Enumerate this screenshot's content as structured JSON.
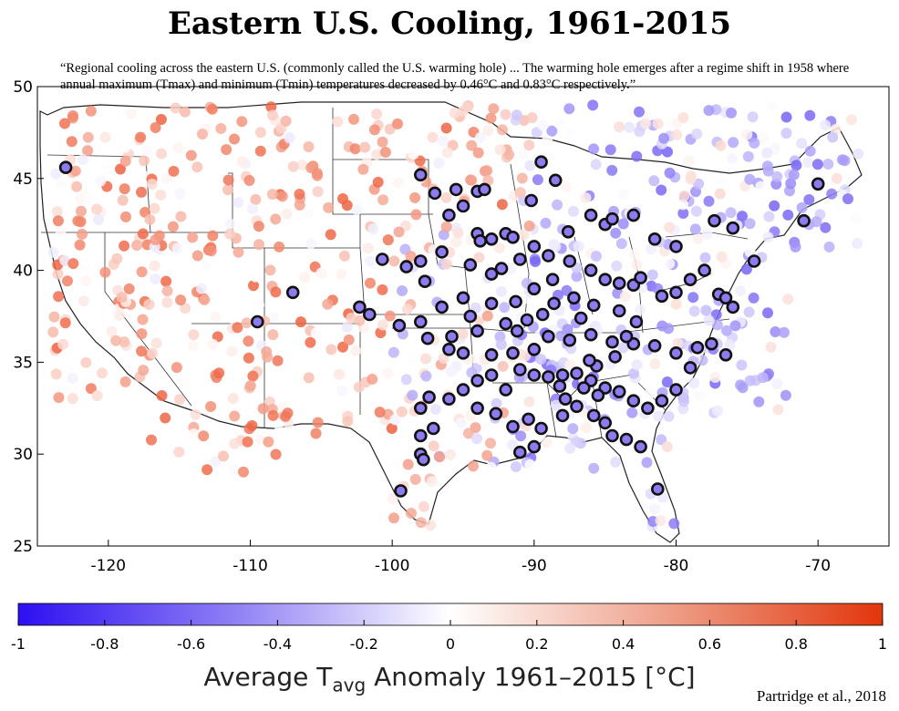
{
  "title": "Eastern U.S. Cooling, 1961-2015",
  "quote": "“Regional cooling across the eastern U.S. (commonly called the U.S. warming hole) ... The warming hole emerges after a regime shift in 1958 where annual maximum (Tmax) and minimum (Tmin) temperatures decreased by 0.46°C and 0.83°C respectively.”",
  "colorbar_label_main": "Average T",
  "colorbar_label_sub": "avg",
  "colorbar_label_rest": " Anomaly 1961–2015 [°C]",
  "credit": "Partridge et al., 2018",
  "colors": {
    "neg": "#3a20f0",
    "zero": "#ffffff",
    "pos": "#e83a10",
    "sig_outline": "#111111"
  },
  "chart_data": {
    "type": "scatter",
    "xlim": [
      -125,
      -65
    ],
    "ylim": [
      25,
      50
    ],
    "x_ticks": [
      "-120",
      "-110",
      "-100",
      "-90",
      "-80",
      "-70"
    ],
    "y_ticks": [
      "25",
      "30",
      "35",
      "40",
      "45",
      "50"
    ],
    "colorbar": {
      "min": -1,
      "max": 1,
      "ticks": [
        "-1",
        "-0.8",
        "-0.6",
        "-0.4",
        "-0.2",
        "0",
        "0.2",
        "0.4",
        "0.6",
        "0.8",
        "1"
      ]
    },
    "significant_stations": [
      [
        -123,
        45.6
      ],
      [
        -107,
        38.8
      ],
      [
        -109.5,
        37.2
      ],
      [
        -98,
        45.2
      ],
      [
        -97,
        44.2
      ],
      [
        -95.5,
        44.4
      ],
      [
        -94,
        44.3
      ],
      [
        -93.5,
        44.4
      ],
      [
        -89.5,
        45.9
      ],
      [
        -88.5,
        44.9
      ],
      [
        -96,
        43
      ],
      [
        -95,
        43.5
      ],
      [
        -94,
        42
      ],
      [
        -93,
        41.7
      ],
      [
        -92,
        42
      ],
      [
        -91.5,
        41.8
      ],
      [
        -93.8,
        41.6
      ],
      [
        -96.5,
        41
      ],
      [
        -98,
        40.5
      ],
      [
        -99,
        40.2
      ],
      [
        -100.7,
        40.6
      ],
      [
        -94.5,
        40.3
      ],
      [
        -93,
        39.8
      ],
      [
        -91,
        40.6
      ],
      [
        -90,
        41.3
      ],
      [
        -89,
        40.8
      ],
      [
        -87.5,
        40.5
      ],
      [
        -86,
        40
      ],
      [
        -85,
        39.5
      ],
      [
        -84,
        39.3
      ],
      [
        -83,
        39.2
      ],
      [
        -82.5,
        39.6
      ],
      [
        -81,
        38.6
      ],
      [
        -80,
        38.8
      ],
      [
        -79,
        39.5
      ],
      [
        -78,
        40
      ],
      [
        -77,
        38.7
      ],
      [
        -76.5,
        38.5
      ],
      [
        -76,
        38
      ],
      [
        -77.3,
        42.7
      ],
      [
        -76,
        42.3
      ],
      [
        -74.5,
        40.5
      ],
      [
        -71,
        42.7
      ],
      [
        -70,
        44.7
      ],
      [
        -85,
        42.5
      ],
      [
        -86,
        43
      ],
      [
        -84.5,
        42.8
      ],
      [
        -83,
        43
      ],
      [
        -81.5,
        41.7
      ],
      [
        -80,
        41.3
      ],
      [
        -88.7,
        39.5
      ],
      [
        -90,
        39
      ],
      [
        -91.3,
        38.3
      ],
      [
        -93,
        38.2
      ],
      [
        -95,
        38.5
      ],
      [
        -96.5,
        38
      ],
      [
        -98,
        37.2
      ],
      [
        -99.5,
        37
      ],
      [
        -101.6,
        37.6
      ],
      [
        -102.3,
        38
      ],
      [
        -97.5,
        36.3
      ],
      [
        -96,
        35.7
      ],
      [
        -95,
        35.5
      ],
      [
        -93,
        35.4
      ],
      [
        -91.5,
        35.5
      ],
      [
        -90,
        35.7
      ],
      [
        -89,
        36.4
      ],
      [
        -87.5,
        36.2
      ],
      [
        -86,
        36.5
      ],
      [
        -84.5,
        36.1
      ],
      [
        -83,
        36
      ],
      [
        -81.5,
        35.9
      ],
      [
        -80,
        35.5
      ],
      [
        -78.5,
        35.8
      ],
      [
        -77.5,
        36
      ],
      [
        -76.5,
        35.4
      ],
      [
        -79,
        34.7
      ],
      [
        -80,
        33.5
      ],
      [
        -81,
        32.9
      ],
      [
        -82,
        32.5
      ],
      [
        -83,
        32.9
      ],
      [
        -84,
        33.4
      ],
      [
        -85,
        33.6
      ],
      [
        -86,
        34
      ],
      [
        -87,
        34.4
      ],
      [
        -88,
        34.3
      ],
      [
        -89,
        34.2
      ],
      [
        -90,
        34.3
      ],
      [
        -91,
        34.6
      ],
      [
        -92,
        33.5
      ],
      [
        -93,
        34.3
      ],
      [
        -94,
        34
      ],
      [
        -95,
        33.5
      ],
      [
        -96,
        33
      ],
      [
        -97.4,
        33.1
      ],
      [
        -98,
        32.5
      ],
      [
        -94,
        32.5
      ],
      [
        -92.7,
        32.2
      ],
      [
        -91.5,
        31.5
      ],
      [
        -90.4,
        31.9
      ],
      [
        -89.5,
        31.4
      ],
      [
        -88,
        32.1
      ],
      [
        -87,
        32.6
      ],
      [
        -85.8,
        32.1
      ],
      [
        -85,
        31.7
      ],
      [
        -84.5,
        31
      ],
      [
        -83.5,
        30.8
      ],
      [
        -82.5,
        30.4
      ],
      [
        -81.3,
        28.1
      ],
      [
        -98,
        31
      ],
      [
        -98,
        30
      ],
      [
        -97.8,
        29.7
      ],
      [
        -99.4,
        28
      ],
      [
        -91,
        30.1
      ],
      [
        -90,
        30.4
      ],
      [
        -88.2,
        33.7
      ],
      [
        -86.5,
        33.6
      ],
      [
        -85.6,
        34.8
      ],
      [
        -84.3,
        35.3
      ],
      [
        -83.5,
        36.4
      ],
      [
        -82.8,
        37.2
      ],
      [
        -84,
        37.8
      ],
      [
        -85.8,
        38.1
      ],
      [
        -87.2,
        38.5
      ],
      [
        -88.6,
        38.2
      ],
      [
        -90.5,
        37.3
      ],
      [
        -92,
        37.1
      ],
      [
        -94,
        36.7
      ],
      [
        -95.8,
        36.4
      ],
      [
        -94.5,
        37.5
      ],
      [
        -89.4,
        37.6
      ],
      [
        -86.7,
        37.4
      ],
      [
        -87.8,
        33
      ],
      [
        -91.2,
        36.7
      ],
      [
        -86.1,
        35.1
      ],
      [
        -85.5,
        33.2
      ],
      [
        -97.1,
        31.4
      ],
      [
        -87.6,
        42.1
      ],
      [
        -90.2,
        43.8
      ],
      [
        -92.3,
        40.1
      ],
      [
        -97.7,
        39.4
      ]
    ]
  }
}
